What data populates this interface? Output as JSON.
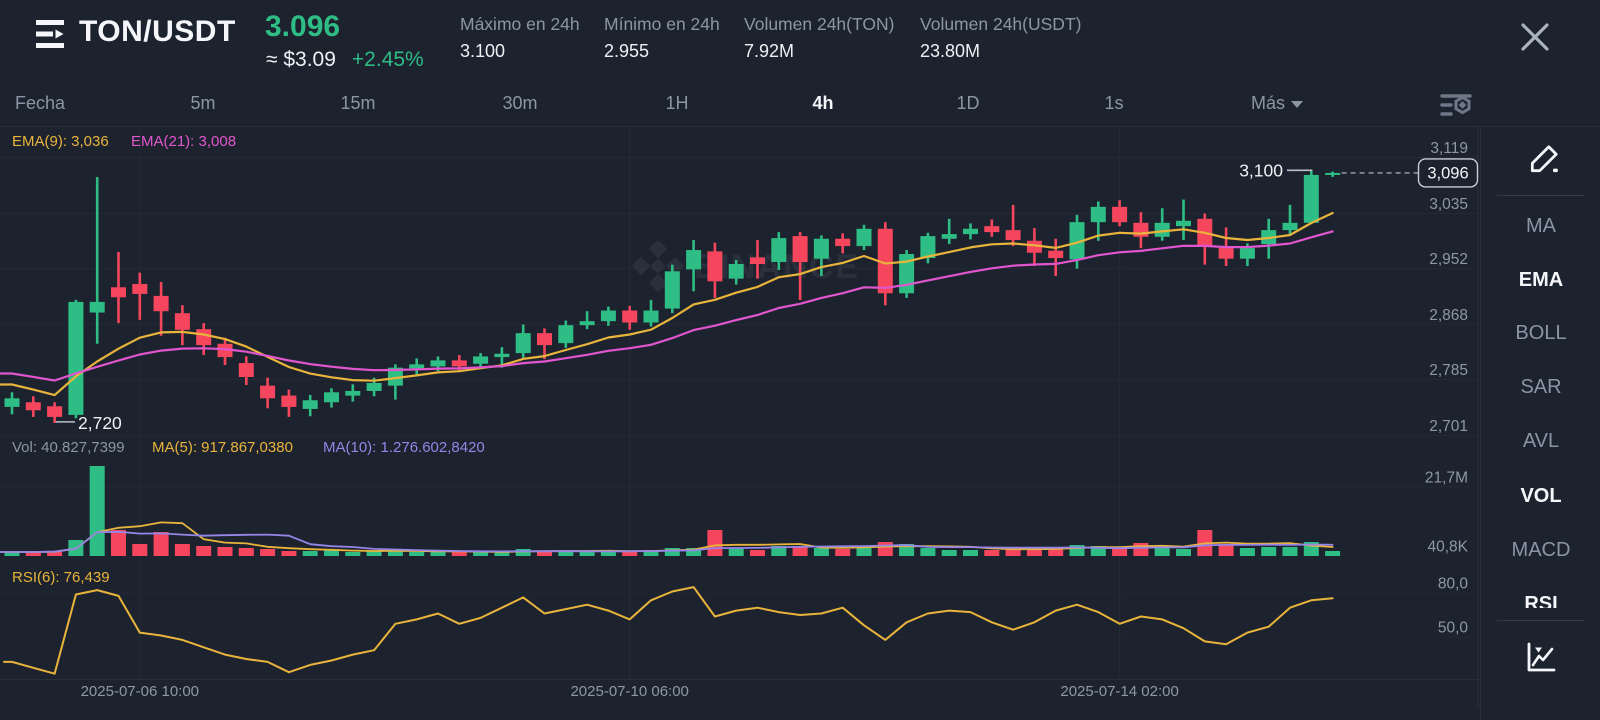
{
  "colors": {
    "background": "#1d232e",
    "up": "#2ebd85",
    "down": "#f6465d",
    "ema9": "#e9b43c",
    "ema21": "#e156ce",
    "vol_ma5": "#e9b43c",
    "vol_ma10": "#9585e8",
    "rsi": "#e9b43c",
    "text_primary": "#eef1f6",
    "text_muted": "#8b96a5",
    "grid": "#2a313c"
  },
  "header": {
    "pair": "TON/USDT",
    "last_price": "3.096",
    "fiat_price": "≈ $3.09",
    "change_percent": "+2.45%",
    "stats": [
      {
        "label": "Máximo en 24h",
        "value": "3.100"
      },
      {
        "label": "Mínimo en 24h",
        "value": "2.955"
      },
      {
        "label": "Volumen 24h(TON)",
        "value": "7.92M"
      },
      {
        "label": "Volumen 24h(USDT)",
        "value": "23.80M"
      }
    ]
  },
  "timeframe_bar": {
    "items": [
      {
        "label": "Fecha",
        "active": false
      },
      {
        "label": "5m",
        "active": false
      },
      {
        "label": "15m",
        "active": false
      },
      {
        "label": "30m",
        "active": false
      },
      {
        "label": "1H",
        "active": false
      },
      {
        "label": "4h",
        "active": true
      },
      {
        "label": "1D",
        "active": false
      },
      {
        "label": "1s",
        "active": false
      },
      {
        "label": "Más",
        "active": false,
        "dropdown": true
      }
    ]
  },
  "sidebar": {
    "main_indicators": [
      {
        "label": "MA",
        "active": false
      },
      {
        "label": "EMA",
        "active": true
      },
      {
        "label": "BOLL",
        "active": false
      },
      {
        "label": "SAR",
        "active": false
      },
      {
        "label": "AVL",
        "active": false
      }
    ],
    "sub_indicators": [
      {
        "label": "VOL",
        "active": true
      },
      {
        "label": "MACD",
        "active": false
      },
      {
        "label": "RSI",
        "active": true
      }
    ]
  },
  "watermark": "BINANCE",
  "chart_data": {
    "type": "candlestick",
    "interval": "4h",
    "price_pane": {
      "legend": [
        {
          "text": "EMA(9): 3,036",
          "color": "#e9b43c"
        },
        {
          "text": "EMA(21): 3,008",
          "color": "#e156ce"
        }
      ],
      "y_ticks": [
        {
          "label": "3,119",
          "price": 3.119
        },
        {
          "label": "3,035",
          "price": 3.035
        },
        {
          "label": "2,952",
          "price": 2.952
        },
        {
          "label": "2,868",
          "price": 2.868
        },
        {
          "label": "2,785",
          "price": 2.785
        },
        {
          "label": "2,701",
          "price": 2.701
        }
      ],
      "last_price": {
        "label": "3,096",
        "price": 3.096
      },
      "high_annotation": {
        "label": "3,100",
        "price": 3.1,
        "candle": 61
      },
      "low_annotation": {
        "label": "2,720",
        "price": 2.72,
        "candle": 2
      },
      "ema9": [
        2.7778,
        2.77,
        2.7618,
        2.7899,
        2.8123,
        2.8316,
        2.8481,
        2.8561,
        2.8569,
        2.8529,
        2.8461,
        2.8347,
        2.8192,
        2.8041,
        2.7941,
        2.7885,
        2.7844,
        2.7835,
        2.7874,
        2.7915,
        2.796,
        2.7978,
        2.8023,
        2.8066,
        2.8163,
        2.8204,
        2.8297,
        2.8384,
        2.8485,
        2.853,
        2.8602,
        2.8778,
        2.8982,
        2.9052,
        2.9159,
        2.9245,
        2.9392,
        2.9438,
        2.9544,
        2.9607,
        2.971,
        2.9598,
        2.9626,
        2.9703,
        2.977,
        2.984,
        2.9886,
        2.9899,
        2.9871,
        2.9833,
        2.991,
        3.0018,
        3.0059,
        3.0047,
        3.008,
        3.0112,
        3.0059,
        2.9981,
        2.9951,
        2.9981,
        3.0027,
        3.0207,
        3.0358
      ],
      "ema21": [
        2.7943,
        2.7892,
        2.7838,
        2.7945,
        2.8043,
        2.8138,
        2.8229,
        2.8288,
        2.8317,
        2.8322,
        2.831,
        2.8271,
        2.8208,
        2.8138,
        2.8084,
        2.8045,
        2.8012,
        2.7993,
        2.7996,
        2.8004,
        2.8016,
        2.8019,
        2.8036,
        2.8054,
        2.8099,
        2.8124,
        2.8173,
        2.8224,
        2.8285,
        2.8323,
        2.8375,
        2.8475,
        2.8596,
        2.8662,
        2.8747,
        2.8823,
        2.8929,
        2.8991,
        2.908,
        2.9151,
        2.9239,
        2.9231,
        2.9277,
        2.9344,
        2.9407,
        2.9472,
        2.9526,
        2.9565,
        2.9583,
        2.9592,
        2.9649,
        2.9722,
        2.9767,
        2.9788,
        2.9826,
        2.9864,
        2.9863,
        2.9845,
        2.9844,
        2.9867,
        2.9898,
        2.9992,
        3.008
      ]
    },
    "volume_pane": {
      "legend": [
        {
          "text": "Vol: 40.827,7399",
          "color": "#8b96a5"
        },
        {
          "text": "MA(5): 917.867,0380",
          "color": "#e9b43c"
        },
        {
          "text": "MA(10): 1.276.602,8420",
          "color": "#9585e8"
        }
      ],
      "y_ticks": [
        {
          "label": "21,7M",
          "value": 21.7
        },
        {
          "label": "40,8K",
          "value": 0.0408
        }
      ],
      "ma5": [
        1.26,
        1.26,
        1.36,
        2.28,
        7.47,
        8.85,
        9.35,
        10.55,
        10.3,
        5.27,
        4.21,
        3.96,
        2.89,
        2.45,
        2.14,
        1.95,
        1.7,
        1.57,
        1.63,
        1.57,
        1.45,
        1.45,
        1.38,
        1.26,
        1.45,
        1.51,
        1.57,
        1.57,
        1.63,
        1.51,
        1.57,
        1.76,
        2.01,
        3.33,
        3.51,
        3.51,
        3.64,
        3.77,
        2.64,
        2.57,
        2.7,
        2.95,
        3.08,
        3.08,
        3.01,
        2.89,
        2.38,
        2.13,
        2.13,
        2.2,
        2.51,
        2.76,
        2.76,
        3.08,
        3.2,
        2.95,
        3.96,
        4.21,
        3.89,
        3.89,
        4.02,
        3.27,
        2.83
      ],
      "ma10": [
        1.26,
        1.26,
        1.36,
        2.28,
        7.47,
        7.59,
        7.04,
        7.1,
        6.73,
        6.37,
        6.53,
        6.65,
        6.72,
        6.37,
        3.7,
        3.08,
        2.83,
        2.23,
        2.04,
        1.85,
        1.7,
        1.57,
        1.48,
        1.45,
        1.51,
        1.48,
        1.51,
        1.48,
        1.45,
        1.48,
        1.54,
        1.66,
        1.79,
        2.48,
        2.51,
        2.54,
        2.7,
        2.89,
        2.98,
        3.04,
        3.11,
        3.3,
        3.42,
        2.86,
        2.79,
        2.79,
        2.67,
        2.6,
        2.6,
        2.6,
        2.7,
        2.57,
        2.45,
        2.6,
        2.7,
        2.73,
        3.36,
        3.49,
        3.49,
        3.55,
        3.49,
        3.61,
        3.52
      ]
    },
    "rsi_pane": {
      "legend": [
        {
          "text": "RSI(6): 76,439",
          "color": "#e9b43c"
        }
      ],
      "y_ticks": [
        {
          "label": "80,0",
          "value": 80
        },
        {
          "label": "50,0",
          "value": 50
        }
      ],
      "values": [
        33,
        29,
        25,
        79,
        82,
        78,
        53,
        51,
        48,
        43,
        38,
        35,
        33,
        26,
        31,
        34,
        38,
        41,
        59,
        62,
        66,
        59,
        63,
        70,
        77,
        66,
        69,
        72,
        68,
        62,
        75,
        81,
        84,
        64,
        68,
        70,
        67,
        65,
        66,
        70,
        58,
        48,
        60,
        66,
        68,
        67,
        60,
        55,
        60,
        68,
        72,
        67,
        59,
        64,
        62,
        56,
        47,
        45,
        53,
        57,
        70,
        75,
        76.4
      ]
    },
    "x_axis": {
      "labels": [
        "2025-07-06 10:00",
        "2025-07-10 06:00",
        "2025-07-14 02:00"
      ],
      "label_candle_indices": [
        6,
        29,
        52
      ]
    },
    "candles": [
      {
        "o": 2.744,
        "h": 2.766,
        "l": 2.733,
        "c": 2.757,
        "v": 1.26
      },
      {
        "o": 2.751,
        "h": 2.76,
        "l": 2.729,
        "c": 2.739,
        "v": 1.26
      },
      {
        "o": 2.745,
        "h": 2.751,
        "l": 2.72,
        "c": 2.729,
        "v": 1.57
      },
      {
        "o": 2.732,
        "h": 2.905,
        "l": 2.727,
        "c": 2.902,
        "v": 5.02
      },
      {
        "o": 2.886,
        "h": 3.09,
        "l": 2.839,
        "c": 2.902,
        "v": 28.25
      },
      {
        "o": 2.924,
        "h": 2.977,
        "l": 2.87,
        "c": 2.909,
        "v": 8.16
      },
      {
        "o": 2.929,
        "h": 2.946,
        "l": 2.875,
        "c": 2.914,
        "v": 3.77
      },
      {
        "o": 2.911,
        "h": 2.932,
        "l": 2.851,
        "c": 2.888,
        "v": 7.53
      },
      {
        "o": 2.885,
        "h": 2.897,
        "l": 2.837,
        "c": 2.86,
        "v": 3.77
      },
      {
        "o": 2.861,
        "h": 2.87,
        "l": 2.822,
        "c": 2.837,
        "v": 3.14
      },
      {
        "o": 2.839,
        "h": 2.848,
        "l": 2.807,
        "c": 2.819,
        "v": 2.83
      },
      {
        "o": 2.81,
        "h": 2.82,
        "l": 2.777,
        "c": 2.789,
        "v": 2.51
      },
      {
        "o": 2.776,
        "h": 2.788,
        "l": 2.742,
        "c": 2.757,
        "v": 2.2
      },
      {
        "o": 2.761,
        "h": 2.77,
        "l": 2.729,
        "c": 2.744,
        "v": 1.57
      },
      {
        "o": 2.741,
        "h": 2.762,
        "l": 2.73,
        "c": 2.754,
        "v": 1.57
      },
      {
        "o": 2.751,
        "h": 2.772,
        "l": 2.743,
        "c": 2.766,
        "v": 1.88
      },
      {
        "o": 2.761,
        "h": 2.778,
        "l": 2.752,
        "c": 2.768,
        "v": 1.26
      },
      {
        "o": 2.768,
        "h": 2.788,
        "l": 2.76,
        "c": 2.78,
        "v": 1.57
      },
      {
        "o": 2.776,
        "h": 2.808,
        "l": 2.755,
        "c": 2.803,
        "v": 1.88
      },
      {
        "o": 2.802,
        "h": 2.817,
        "l": 2.791,
        "c": 2.808,
        "v": 1.26
      },
      {
        "o": 2.805,
        "h": 2.82,
        "l": 2.798,
        "c": 2.814,
        "v": 1.26
      },
      {
        "o": 2.814,
        "h": 2.822,
        "l": 2.799,
        "c": 2.805,
        "v": 1.26
      },
      {
        "o": 2.809,
        "h": 2.825,
        "l": 2.801,
        "c": 2.82,
        "v": 1.26
      },
      {
        "o": 2.819,
        "h": 2.834,
        "l": 2.803,
        "c": 2.824,
        "v": 1.26
      },
      {
        "o": 2.825,
        "h": 2.868,
        "l": 2.818,
        "c": 2.855,
        "v": 2.2
      },
      {
        "o": 2.855,
        "h": 2.862,
        "l": 2.816,
        "c": 2.837,
        "v": 1.57
      },
      {
        "o": 2.84,
        "h": 2.874,
        "l": 2.833,
        "c": 2.867,
        "v": 1.57
      },
      {
        "o": 2.867,
        "h": 2.888,
        "l": 2.861,
        "c": 2.873,
        "v": 1.26
      },
      {
        "o": 2.873,
        "h": 2.895,
        "l": 2.866,
        "c": 2.889,
        "v": 1.57
      },
      {
        "o": 2.889,
        "h": 2.896,
        "l": 2.86,
        "c": 2.871,
        "v": 1.57
      },
      {
        "o": 2.871,
        "h": 2.905,
        "l": 2.865,
        "c": 2.889,
        "v": 1.88
      },
      {
        "o": 2.892,
        "h": 2.958,
        "l": 2.885,
        "c": 2.948,
        "v": 2.51
      },
      {
        "o": 2.951,
        "h": 2.995,
        "l": 2.918,
        "c": 2.98,
        "v": 2.51
      },
      {
        "o": 2.978,
        "h": 2.991,
        "l": 2.908,
        "c": 2.933,
        "v": 8.16
      },
      {
        "o": 2.937,
        "h": 2.965,
        "l": 2.928,
        "c": 2.959,
        "v": 2.51
      },
      {
        "o": 2.969,
        "h": 2.995,
        "l": 2.937,
        "c": 2.959,
        "v": 1.88
      },
      {
        "o": 2.962,
        "h": 3.007,
        "l": 2.95,
        "c": 2.998,
        "v": 3.14
      },
      {
        "o": 3.001,
        "h": 3.007,
        "l": 2.905,
        "c": 2.962,
        "v": 3.14
      },
      {
        "o": 2.967,
        "h": 3.002,
        "l": 2.941,
        "c": 2.997,
        "v": 2.51
      },
      {
        "o": 2.997,
        "h": 3.005,
        "l": 2.975,
        "c": 2.986,
        "v": 2.2
      },
      {
        "o": 2.986,
        "h": 3.018,
        "l": 2.98,
        "c": 3.012,
        "v": 2.51
      },
      {
        "o": 3.012,
        "h": 3.022,
        "l": 2.897,
        "c": 2.915,
        "v": 4.39
      },
      {
        "o": 2.915,
        "h": 2.98,
        "l": 2.908,
        "c": 2.974,
        "v": 3.77
      },
      {
        "o": 2.968,
        "h": 3.006,
        "l": 2.96,
        "c": 3.001,
        "v": 2.51
      },
      {
        "o": 2.997,
        "h": 3.027,
        "l": 2.989,
        "c": 3.004,
        "v": 1.88
      },
      {
        "o": 3.004,
        "h": 3.02,
        "l": 2.996,
        "c": 3.012,
        "v": 1.88
      },
      {
        "o": 3.016,
        "h": 3.026,
        "l": 3.0,
        "c": 3.007,
        "v": 1.88
      },
      {
        "o": 3.01,
        "h": 3.048,
        "l": 2.986,
        "c": 2.995,
        "v": 2.51
      },
      {
        "o": 2.994,
        "h": 3.013,
        "l": 2.956,
        "c": 2.976,
        "v": 2.51
      },
      {
        "o": 2.979,
        "h": 2.997,
        "l": 2.941,
        "c": 2.968,
        "v": 2.2
      },
      {
        "o": 2.966,
        "h": 3.033,
        "l": 2.952,
        "c": 3.022,
        "v": 3.45
      },
      {
        "o": 3.022,
        "h": 3.053,
        "l": 2.994,
        "c": 3.045,
        "v": 3.14
      },
      {
        "o": 3.045,
        "h": 3.055,
        "l": 3.016,
        "c": 3.022,
        "v": 2.51
      },
      {
        "o": 3.021,
        "h": 3.037,
        "l": 2.983,
        "c": 3.0,
        "v": 4.08
      },
      {
        "o": 3.0,
        "h": 3.043,
        "l": 2.994,
        "c": 3.021,
        "v": 2.83
      },
      {
        "o": 3.016,
        "h": 3.056,
        "l": 2.995,
        "c": 3.024,
        "v": 2.2
      },
      {
        "o": 3.027,
        "h": 3.035,
        "l": 2.958,
        "c": 2.985,
        "v": 8.16
      },
      {
        "o": 2.983,
        "h": 3.014,
        "l": 2.956,
        "c": 2.967,
        "v": 3.77
      },
      {
        "o": 2.967,
        "h": 2.99,
        "l": 2.956,
        "c": 2.983,
        "v": 2.51
      },
      {
        "o": 2.989,
        "h": 3.027,
        "l": 2.967,
        "c": 3.01,
        "v": 2.83
      },
      {
        "o": 3.01,
        "h": 3.048,
        "l": 3.002,
        "c": 3.021,
        "v": 2.83
      },
      {
        "o": 3.021,
        "h": 3.1,
        "l": 3.021,
        "c": 3.093,
        "v": 4.39
      },
      {
        "o": 3.093,
        "h": 3.098,
        "l": 3.09,
        "c": 3.096,
        "v": 1.57
      }
    ]
  }
}
